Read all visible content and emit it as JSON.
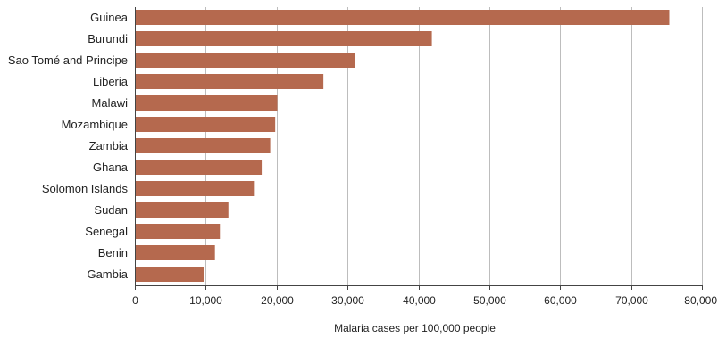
{
  "chart_data": {
    "type": "bar",
    "orientation": "horizontal",
    "title": "",
    "xlabel": "Malaria cases per 100,000 people",
    "ylabel": "",
    "categories": [
      "Guinea",
      "Burundi",
      "Sao Tomé and Principe",
      "Liberia",
      "Malawi",
      "Mozambique",
      "Zambia",
      "Ghana",
      "Solomon Islands",
      "Sudan",
      "Senegal",
      "Benin",
      "Gambia"
    ],
    "values": [
      75400,
      41900,
      31100,
      26600,
      20100,
      19800,
      19100,
      17900,
      16800,
      13200,
      12000,
      11300,
      9700
    ],
    "xlim": [
      0,
      80000
    ],
    "xticks": [
      0,
      10000,
      20000,
      30000,
      40000,
      50000,
      60000,
      70000,
      80000
    ],
    "xtick_labels": [
      "0",
      "10,000",
      "20,000",
      "30,000",
      "40,000",
      "50,000",
      "60,000",
      "70,000",
      "80,000"
    ],
    "grid": "vertical",
    "bar_color": "#b5694e"
  }
}
